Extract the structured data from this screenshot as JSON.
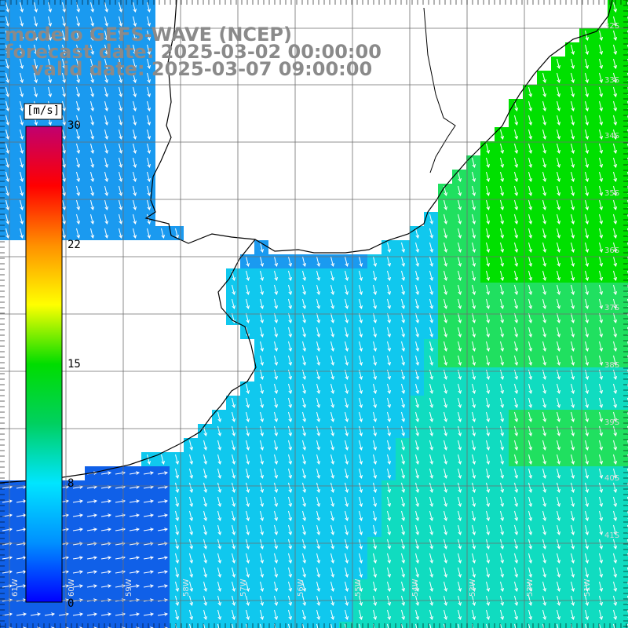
{
  "title": {
    "line1": "modelo GEFS-WAVE (NCEP)",
    "line2": "forecast date: 2025-03-02 00:00:00",
    "line3": "valid date: 2025-03-07 09:00:00"
  },
  "colorbar": {
    "unit": "[m/s]",
    "min": 0,
    "max": 30,
    "ticks": [
      "30",
      "22",
      "15",
      "8",
      "0"
    ],
    "colors": [
      "#0000ff",
      "#0090ff",
      "#00e5ff",
      "#00d060",
      "#00dd00",
      "#ffff00",
      "#ff9000",
      "#ff0000",
      "#c00070"
    ]
  },
  "lat_labels": [
    "32S",
    "33S",
    "34S",
    "35S",
    "36S",
    "37S",
    "38S",
    "39S",
    "40S",
    "41S"
  ],
  "lon_labels": [
    "61W",
    "60W",
    "59W",
    "58W",
    "57W",
    "56W",
    "55W",
    "54W",
    "53W",
    "52W",
    "51W"
  ],
  "field": {
    "variable": "wind speed",
    "colors": {
      "land": "#ffffff",
      "deep_blue": "#1060e8",
      "mid_blue": "#1a9af0",
      "cyan": "#10c8ee",
      "teal": "#10dcc0",
      "green": "#20e060",
      "bright_green": "#00e000",
      "arrow": "#ffffff",
      "coast": "#000000",
      "grid": "#6e6e6e"
    }
  }
}
